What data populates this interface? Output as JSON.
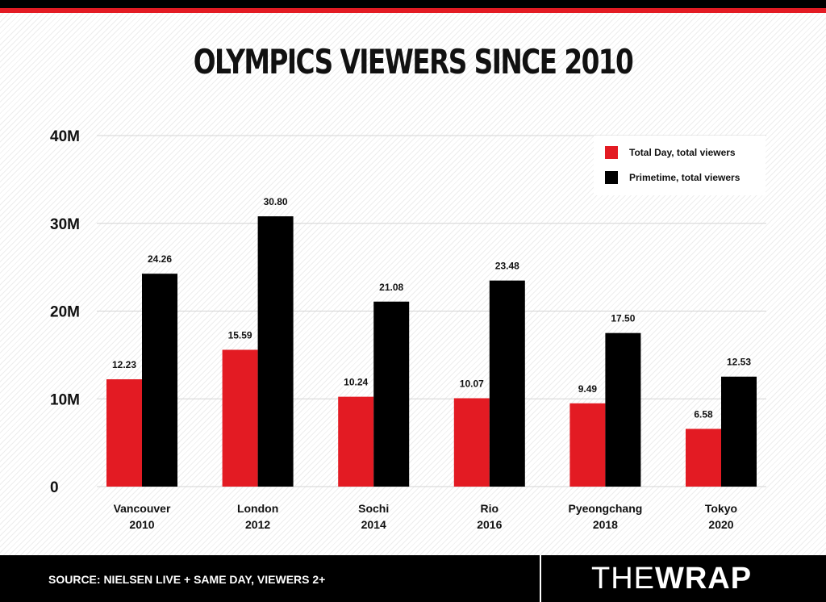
{
  "chart_data": {
    "type": "bar",
    "title": "OLYMPICS VIEWERS SINCE 2010",
    "categories": [
      [
        "Vancouver",
        "2010"
      ],
      [
        "London",
        "2012"
      ],
      [
        "Sochi",
        "2014"
      ],
      [
        "Rio",
        "2016"
      ],
      [
        "Pyeongchang",
        "2018"
      ],
      [
        "Tokyo",
        "2020"
      ]
    ],
    "series": [
      {
        "name": "Total Day, total viewers",
        "color": "#e31b23",
        "values": [
          12.23,
          15.59,
          10.24,
          10.07,
          9.49,
          6.58
        ],
        "labels": [
          "12.23",
          "15.59",
          "10.24",
          "10.07",
          "9.49",
          "6.58"
        ]
      },
      {
        "name": "Primetime, total viewers",
        "color": "#000000",
        "values": [
          24.26,
          30.8,
          21.08,
          23.48,
          17.5,
          12.53
        ],
        "labels": [
          "24.26",
          "30.80",
          "21.08",
          "23.48",
          "17.50",
          "12.53"
        ]
      }
    ],
    "yticks": [
      {
        "value": 0,
        "label": "0"
      },
      {
        "value": 10,
        "label": "10M"
      },
      {
        "value": 20,
        "label": "20M"
      },
      {
        "value": 30,
        "label": "30M"
      },
      {
        "value": 40,
        "label": "40M"
      }
    ],
    "ylim": [
      0,
      40
    ],
    "grid": true,
    "legend": "top-right"
  },
  "footer": {
    "source": "SOURCE: NIELSEN LIVE + SAME DAY, VIEWERS 2+",
    "logo_the": "THE",
    "logo_wrap": "WRAP"
  }
}
